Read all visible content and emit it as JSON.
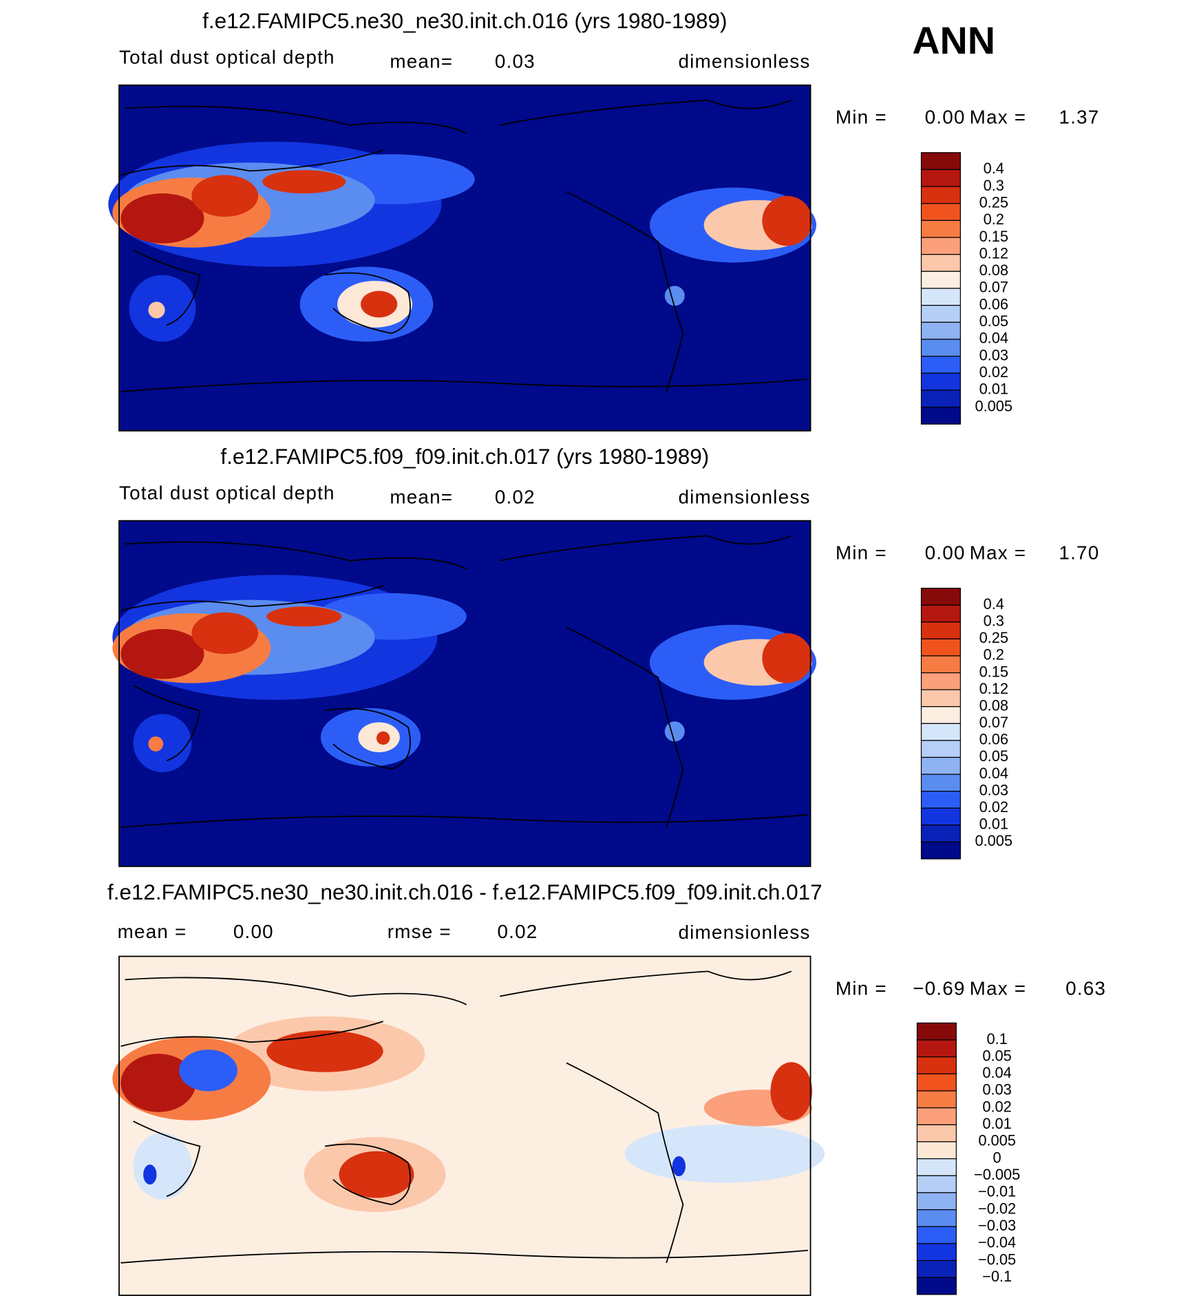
{
  "season": "ANN",
  "panels": [
    {
      "title": "f.e12.FAMIPC5.ne30_ne30.init.ch.016 (yrs 1980-1989)",
      "field": "Total dust optical depth",
      "mean_label": "mean=",
      "mean": "0.03",
      "units": "dimensionless",
      "min_label": "Min =",
      "min": "0.00",
      "max_label": "Max =",
      "max": "1.37",
      "colorbar": {
        "labels": [
          "0.4",
          "0.3",
          "0.25",
          "0.2",
          "0.15",
          "0.12",
          "0.08",
          "0.07",
          "0.06",
          "0.05",
          "0.04",
          "0.03",
          "0.02",
          "0.01",
          "0.005"
        ],
        "colors": [
          "#870a0a",
          "#b4170f",
          "#d8310f",
          "#f0531e",
          "#f77c44",
          "#fba07a",
          "#fcc8ab",
          "#fdeee2",
          "#d6e6fa",
          "#b5cff7",
          "#8fb2f2",
          "#5b8cf0",
          "#2c5ef7",
          "#1235e0",
          "#0a22b8",
          "#000a8a"
        ]
      }
    },
    {
      "title": "f.e12.FAMIPC5.f09_f09.init.ch.017 (yrs 1980-1989)",
      "field": "Total dust optical depth",
      "mean_label": "mean=",
      "mean": "0.02",
      "units": "dimensionless",
      "min_label": "Min =",
      "min": "0.00",
      "max_label": "Max =",
      "max": "1.70",
      "colorbar": {
        "labels": [
          "0.4",
          "0.3",
          "0.25",
          "0.2",
          "0.15",
          "0.12",
          "0.08",
          "0.07",
          "0.06",
          "0.05",
          "0.04",
          "0.03",
          "0.02",
          "0.01",
          "0.005"
        ],
        "colors": [
          "#870a0a",
          "#b4170f",
          "#d8310f",
          "#f0531e",
          "#f77c44",
          "#fba07a",
          "#fcc8ab",
          "#fdeee2",
          "#d6e6fa",
          "#b5cff7",
          "#8fb2f2",
          "#5b8cf0",
          "#2c5ef7",
          "#1235e0",
          "#0a22b8",
          "#000a8a"
        ]
      }
    },
    {
      "title": "f.e12.FAMIPC5.ne30_ne30.init.ch.016 - f.e12.FAMIPC5.f09_f09.init.ch.017",
      "mean_label": "mean =",
      "mean": "0.00",
      "rmse_label": "rmse =",
      "rmse": "0.02",
      "units": "dimensionless",
      "min_label": "Min =",
      "min": "−0.69",
      "max_label": "Max =",
      "max": "0.63",
      "colorbar": {
        "labels": [
          "0.1",
          "0.05",
          "0.04",
          "0.03",
          "0.02",
          "0.01",
          "0.005",
          "0",
          "−0.005",
          "−0.01",
          "−0.02",
          "−0.03",
          "−0.04",
          "−0.05",
          "−0.1"
        ],
        "colors": [
          "#870a0a",
          "#b4170f",
          "#d8310f",
          "#f0531e",
          "#f77c44",
          "#fba07a",
          "#fcc8ab",
          "#fde8d6",
          "#d6e6fa",
          "#b5cff7",
          "#8fb2f2",
          "#5b8cf0",
          "#2c5ef7",
          "#1235e0",
          "#0a22b8",
          "#000a8a"
        ]
      }
    }
  ]
}
